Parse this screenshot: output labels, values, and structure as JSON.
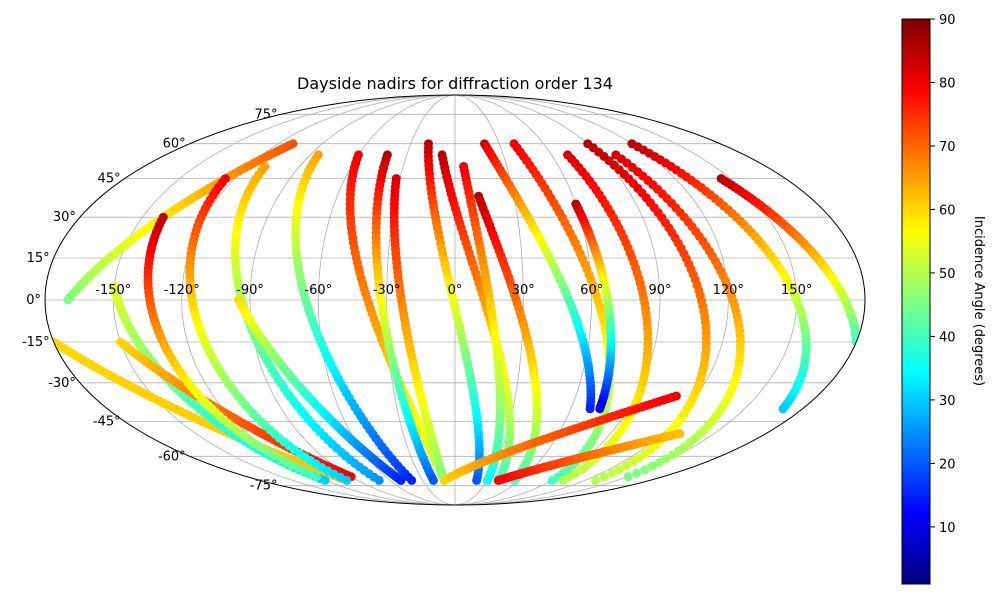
{
  "chart_data": {
    "type": "scatter",
    "projection": "mollweide",
    "title": "Dayside nadirs for diffraction order 134",
    "xlabel": "",
    "ylabel": "",
    "longitude_ticks": [
      "-150°",
      "-120°",
      "-90°",
      "-60°",
      "-30°",
      "0°",
      "30°",
      "60°",
      "90°",
      "120°",
      "150°"
    ],
    "latitude_ticks": [
      "75°",
      "60°",
      "45°",
      "30°",
      "15°",
      "0°",
      "-15°",
      "-30°",
      "-45°",
      "-60°",
      "-75°"
    ],
    "grid": true,
    "colorbar": {
      "label": "Incidence Angle (degrees)",
      "colormap": "jet",
      "range": [
        1,
        90
      ],
      "ticks": [
        "10",
        "20",
        "30",
        "40",
        "50",
        "60",
        "70",
        "80",
        "90"
      ]
    },
    "series": [
      {
        "lon_start": -180,
        "lat_start": -15,
        "lon_end": -100,
        "lat_end": -72,
        "inc_start": 60,
        "inc_end": 62
      },
      {
        "lon_start": -170,
        "lat_start": 0,
        "lon_end": -110,
        "lat_end": 60,
        "inc_start": 45,
        "inc_end": 72
      },
      {
        "lon_start": -150,
        "lat_start": 5,
        "lon_end": -120,
        "lat_end": -72,
        "inc_start": 55,
        "inc_end": 30
      },
      {
        "lon_start": -150,
        "lat_start": -15,
        "lon_end": -90,
        "lat_end": -70,
        "inc_start": 60,
        "inc_end": 80
      },
      {
        "lon_start": -140,
        "lat_start": 30,
        "lon_end": -120,
        "lat_end": -70,
        "inc_start": 85,
        "inc_end": 40
      },
      {
        "lon_start": -125,
        "lat_start": 45,
        "lon_end": -100,
        "lat_end": -72,
        "inc_start": 80,
        "inc_end": 30
      },
      {
        "lon_start": -110,
        "lat_start": 50,
        "lon_end": -70,
        "lat_end": -72,
        "inc_start": 65,
        "inc_end": 25
      },
      {
        "lon_start": -95,
        "lat_start": 0,
        "lon_end": -50,
        "lat_end": -72,
        "inc_start": 60,
        "inc_end": 15
      },
      {
        "lon_start": -85,
        "lat_start": 55,
        "lon_end": -40,
        "lat_end": -72,
        "inc_start": 65,
        "inc_end": 15
      },
      {
        "lon_start": -60,
        "lat_start": 55,
        "lon_end": -10,
        "lat_end": -72,
        "inc_start": 80,
        "inc_end": 50
      },
      {
        "lon_start": -42,
        "lat_start": 55,
        "lon_end": -20,
        "lat_end": -72,
        "inc_start": 85,
        "inc_end": 20
      },
      {
        "lon_start": -32,
        "lat_start": 45,
        "lon_end": -10,
        "lat_end": -72,
        "inc_start": 82,
        "inc_end": 45
      },
      {
        "lon_start": -18,
        "lat_start": 60,
        "lon_end": 20,
        "lat_end": -72,
        "inc_start": 85,
        "inc_end": 20
      },
      {
        "lon_start": -8,
        "lat_start": 55,
        "lon_end": 40,
        "lat_end": -72,
        "inc_start": 85,
        "inc_end": 40
      },
      {
        "lon_start": 5,
        "lat_start": 50,
        "lon_end": 30,
        "lat_end": -72,
        "inc_start": 80,
        "inc_end": 35
      },
      {
        "lon_start": 12,
        "lat_start": 38,
        "lon_end": 55,
        "lat_end": -72,
        "inc_start": 85,
        "inc_end": 40
      },
      {
        "lon_start": 20,
        "lat_start": 60,
        "lon_end": 70,
        "lat_end": -40,
        "inc_start": 82,
        "inc_end": 15
      },
      {
        "lon_start": 40,
        "lat_start": 60,
        "lon_end": 90,
        "lat_end": -72,
        "inc_start": 80,
        "inc_end": 40
      },
      {
        "lon_start": 60,
        "lat_start": 35,
        "lon_end": 75,
        "lat_end": -40,
        "inc_start": 85,
        "inc_end": 10
      },
      {
        "lon_start": 70,
        "lat_start": 55,
        "lon_end": 100,
        "lat_end": -72,
        "inc_start": 82,
        "inc_end": 50
      },
      {
        "lon_start": 90,
        "lat_start": 60,
        "lon_end": 130,
        "lat_end": -72,
        "inc_start": 85,
        "inc_end": 50
      },
      {
        "lon_start": 100,
        "lat_start": 55,
        "lon_end": 150,
        "lat_end": -70,
        "inc_start": 82,
        "inc_end": 45
      },
      {
        "lon_start": 120,
        "lat_start": 60,
        "lon_end": 170,
        "lat_end": -40,
        "inc_start": 85,
        "inc_end": 30
      },
      {
        "lon_start": 145,
        "lat_start": 45,
        "lon_end": 180,
        "lat_end": -15,
        "inc_start": 85,
        "inc_end": 40
      },
      {
        "lon_start": -10,
        "lat_start": -72,
        "lon_end": 110,
        "lat_end": -35,
        "inc_start": 60,
        "inc_end": 80
      },
      {
        "lon_start": 40,
        "lat_start": -72,
        "lon_end": 130,
        "lat_end": -50,
        "inc_start": 80,
        "inc_end": 62
      }
    ]
  }
}
